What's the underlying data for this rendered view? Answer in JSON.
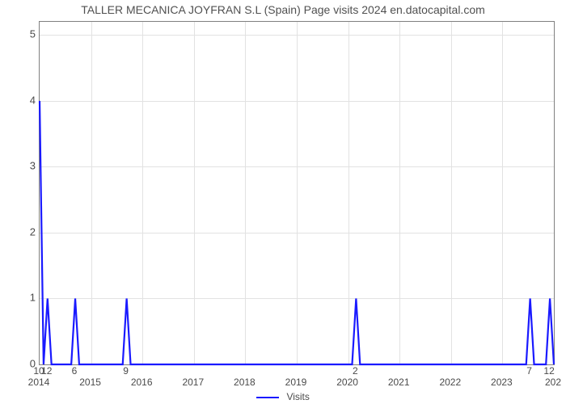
{
  "chart": {
    "type": "line",
    "title": "TALLER MECANICA JOYFRAN S.L (Spain) Page visits 2024 en.datocapital.com",
    "title_fontsize": 14,
    "title_color": "#505050",
    "background_color": "#ffffff",
    "plot_border_color": "#808080",
    "grid_color": "#e2e2e2",
    "line_color": "#1a1aff",
    "line_width": 2.2,
    "text_color": "#4a4a4a",
    "ylim": [
      0,
      5.2
    ],
    "yticks": [
      0,
      1,
      2,
      3,
      4,
      5
    ],
    "x_index_range": [
      0,
      130
    ],
    "lower_xticks": [
      {
        "label": "2014",
        "idx": 0
      },
      {
        "label": "2015",
        "idx": 13
      },
      {
        "label": "2016",
        "idx": 26
      },
      {
        "label": "2017",
        "idx": 39
      },
      {
        "label": "2018",
        "idx": 52
      },
      {
        "label": "2019",
        "idx": 65
      },
      {
        "label": "2020",
        "idx": 78
      },
      {
        "label": "2021",
        "idx": 91
      },
      {
        "label": "2022",
        "idx": 104
      },
      {
        "label": "2023",
        "idx": 117
      },
      {
        "label": "202",
        "idx": 130
      }
    ],
    "upper_xticks": [
      {
        "label": "10",
        "idx": 0
      },
      {
        "label": "12",
        "idx": 2
      },
      {
        "label": "6",
        "idx": 9
      },
      {
        "label": "9",
        "idx": 22
      },
      {
        "label": "2",
        "idx": 80
      },
      {
        "label": "7",
        "idx": 124
      },
      {
        "label": "12",
        "idx": 129
      }
    ],
    "series": {
      "name": "Visits",
      "points": [
        {
          "idx": 0,
          "y": 4
        },
        {
          "idx": 1,
          "y": 0
        },
        {
          "idx": 2,
          "y": 1
        },
        {
          "idx": 3,
          "y": 0
        },
        {
          "idx": 8,
          "y": 0
        },
        {
          "idx": 9,
          "y": 1
        },
        {
          "idx": 10,
          "y": 0
        },
        {
          "idx": 21,
          "y": 0
        },
        {
          "idx": 22,
          "y": 1
        },
        {
          "idx": 23,
          "y": 0
        },
        {
          "idx": 79,
          "y": 0
        },
        {
          "idx": 80,
          "y": 1
        },
        {
          "idx": 81,
          "y": 0
        },
        {
          "idx": 123,
          "y": 0
        },
        {
          "idx": 124,
          "y": 1
        },
        {
          "idx": 125,
          "y": 0
        },
        {
          "idx": 128,
          "y": 0
        },
        {
          "idx": 129,
          "y": 1
        },
        {
          "idx": 130,
          "y": 0
        }
      ]
    },
    "legend_label": "Visits"
  }
}
